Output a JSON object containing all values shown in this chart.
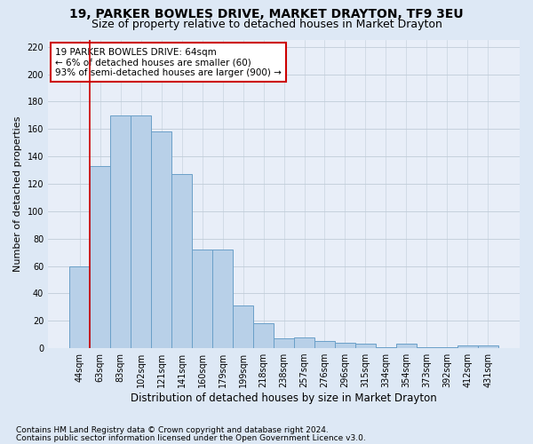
{
  "title": "19, PARKER BOWLES DRIVE, MARKET DRAYTON, TF9 3EU",
  "subtitle": "Size of property relative to detached houses in Market Drayton",
  "xlabel": "Distribution of detached houses by size in Market Drayton",
  "ylabel": "Number of detached properties",
  "categories": [
    "44sqm",
    "63sqm",
    "83sqm",
    "102sqm",
    "121sqm",
    "141sqm",
    "160sqm",
    "179sqm",
    "199sqm",
    "218sqm",
    "238sqm",
    "257sqm",
    "276sqm",
    "296sqm",
    "315sqm",
    "334sqm",
    "354sqm",
    "373sqm",
    "392sqm",
    "412sqm",
    "431sqm"
  ],
  "values": [
    60,
    133,
    170,
    170,
    158,
    127,
    72,
    72,
    31,
    18,
    7,
    8,
    5,
    4,
    3,
    1,
    3,
    1,
    1,
    2,
    2
  ],
  "bar_color": "#b8d0e8",
  "bar_edge_color": "#6aa0c8",
  "vline_color": "#cc0000",
  "annotation_line1": "19 PARKER BOWLES DRIVE: 64sqm",
  "annotation_line2": "← 6% of detached houses are smaller (60)",
  "annotation_line3": "93% of semi-detached houses are larger (900) →",
  "annotation_box_facecolor": "white",
  "annotation_box_edgecolor": "#cc0000",
  "ylim_max": 225,
  "yticks": [
    0,
    20,
    40,
    60,
    80,
    100,
    120,
    140,
    160,
    180,
    200,
    220
  ],
  "footer1": "Contains HM Land Registry data © Crown copyright and database right 2024.",
  "footer2": "Contains public sector information licensed under the Open Government Licence v3.0.",
  "fig_facecolor": "#dde8f5",
  "axes_facecolor": "#e8eef8",
  "grid_color": "#c0ccd8",
  "title_fontsize": 10,
  "subtitle_fontsize": 9,
  "xlabel_fontsize": 8.5,
  "ylabel_fontsize": 8,
  "tick_fontsize": 7,
  "annot_fontsize": 7.5,
  "footer_fontsize": 6.5
}
